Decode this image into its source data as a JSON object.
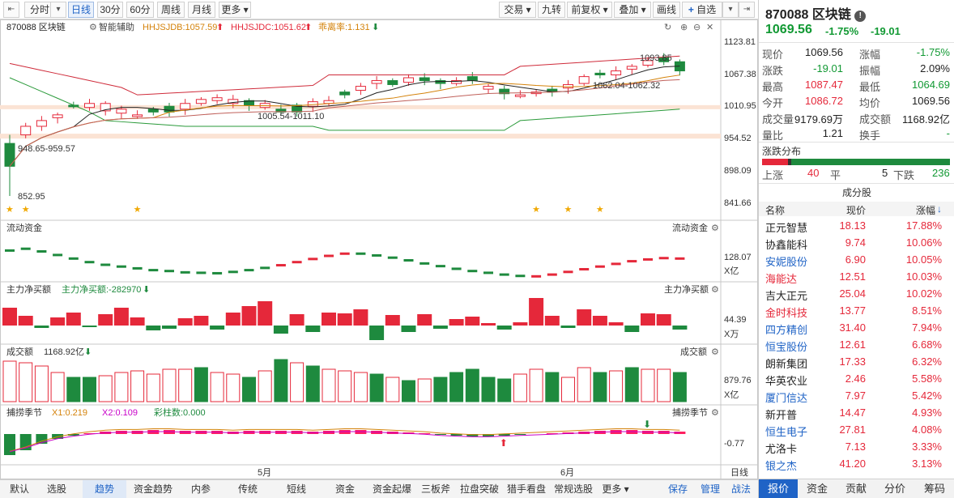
{
  "toolbar": {
    "left": [
      "分时",
      "日线",
      "30分",
      "60分",
      "周线",
      "月线",
      "更多"
    ],
    "active": "日线",
    "right": [
      "交易",
      "九转",
      "前复权",
      "叠加",
      "画线",
      "自选"
    ]
  },
  "main_chart": {
    "symbol_label": "870088 区块链",
    "assist_label": "智能辅助",
    "ind1": "HHJSJDB:1057.59",
    "ind2": "HHJSJDC:1051.62",
    "ind3": "乖离率:1.131",
    "price_axis": [
      "1123.81",
      "1067.38",
      "1010.95",
      "954.52",
      "898.09",
      "841.66"
    ],
    "annotations": {
      "low_range": "948.65-959.57",
      "low": "852.95",
      "mid_range": "1005.54-1011.10",
      "high": "1093.85",
      "recent_range": "1062.04-1062.32"
    },
    "colors": {
      "up": "#e5283a",
      "down": "#1e8a3e"
    }
  },
  "flow_panel": {
    "title": "流动资金",
    "right_title": "流动资金",
    "value": "128.07",
    "unit": "X亿"
  },
  "mainnet_panel": {
    "title": "主力净买额",
    "sub": "主力净买额:-282970",
    "right_title": "主力净买额",
    "value": "44.39",
    "unit": "X万"
  },
  "volume_panel": {
    "title": "成交额",
    "sub": "1168.92亿",
    "right_title": "成交额",
    "value": "879.76",
    "unit": "X亿"
  },
  "season_panel": {
    "title": "捕捞季节",
    "x1": "X1:0.219",
    "x2": "X2:0.109",
    "bar": "彩柱数:0.000",
    "right_title": "捕捞季节",
    "value": "-0.77"
  },
  "x_axis": {
    "may": "5月",
    "june": "6月",
    "mode": "日线"
  },
  "bottom_tabs": [
    "默认",
    "选股",
    "趋势",
    "资金趋势",
    "内参",
    "传统",
    "短线",
    "资金",
    "资金起爆",
    "三板斧",
    "拉盘突破",
    "猎手看盘",
    "常规选股",
    "更多",
    "保存",
    "管理",
    "战法"
  ],
  "bottom_active": "趋势",
  "panel": {
    "title": "870088 区块链",
    "price": "1069.56",
    "chg_pct": "-1.75%",
    "chg": "-19.01",
    "quote": [
      [
        "现价",
        "1069.56",
        "涨幅",
        "-1.75%"
      ],
      [
        "涨跌",
        "-19.01",
        "振幅",
        "2.09%"
      ],
      [
        "最高",
        "1087.47",
        "最低",
        "1064.69"
      ],
      [
        "今开",
        "1086.72",
        "均价",
        "1069.56"
      ],
      [
        "成交量",
        "9179.69万",
        "成交额",
        "1168.92亿"
      ],
      [
        "量比",
        "1.21",
        "换手",
        "-"
      ]
    ],
    "dist_title": "涨跌分布",
    "dist": {
      "up_label": "上涨",
      "up": "40",
      "flat_label": "平",
      "flat": "5",
      "down_label": "下跌",
      "down": "236"
    },
    "stocks_title": "成分股",
    "stocks_head": [
      "名称",
      "现价",
      "涨幅"
    ],
    "stocks": [
      {
        "name": "正元智慧",
        "price": "18.13",
        "chg": "17.88%",
        "blue": false
      },
      {
        "name": "协鑫能科",
        "price": "9.74",
        "chg": "10.06%",
        "blue": false
      },
      {
        "name": "安妮股份",
        "price": "6.90",
        "chg": "10.05%",
        "blue": true
      },
      {
        "name": "海能达",
        "price": "12.51",
        "chg": "10.03%",
        "blue": false,
        "red": true
      },
      {
        "name": "吉大正元",
        "price": "25.04",
        "chg": "10.02%",
        "blue": false
      },
      {
        "name": "金时科技",
        "price": "13.77",
        "chg": "8.51%",
        "blue": false,
        "red": true
      },
      {
        "name": "四方精创",
        "price": "31.40",
        "chg": "7.94%",
        "blue": true
      },
      {
        "name": "恒宝股份",
        "price": "12.61",
        "chg": "6.68%",
        "blue": true
      },
      {
        "name": "朗新集团",
        "price": "17.33",
        "chg": "6.32%",
        "blue": false
      },
      {
        "name": "华英农业",
        "price": "2.46",
        "chg": "5.58%",
        "blue": false
      },
      {
        "name": "厦门信达",
        "price": "7.97",
        "chg": "5.42%",
        "blue": true
      },
      {
        "name": "新开普",
        "price": "14.47",
        "chg": "4.93%",
        "blue": false
      },
      {
        "name": "恒生电子",
        "price": "27.81",
        "chg": "4.08%",
        "blue": true
      },
      {
        "name": "尤洛卡",
        "price": "7.13",
        "chg": "3.33%",
        "blue": false
      },
      {
        "name": "银之杰",
        "price": "41.20",
        "chg": "3.13%",
        "blue": true
      }
    ],
    "tabs": [
      "报价",
      "资金",
      "贡献",
      "分价",
      "筹码"
    ],
    "tab_active": "报价"
  }
}
